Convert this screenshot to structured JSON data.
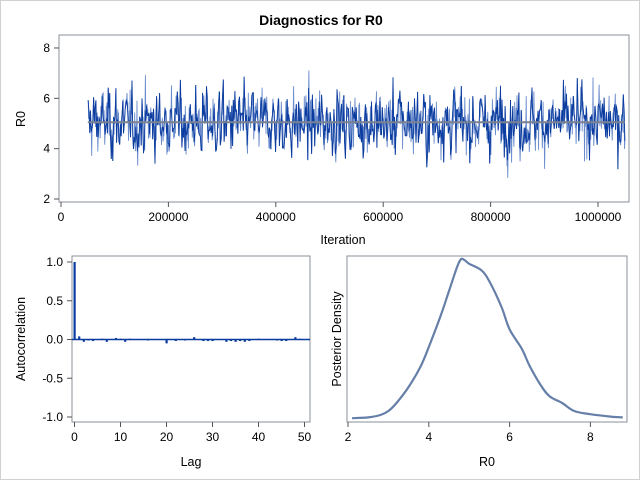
{
  "title": "Diagnostics for R0",
  "colors": {
    "trace": "#0a3b9f",
    "trace_light": "#6a8ccc",
    "mean_line": "#7a8190",
    "acf": "#0a3b9f",
    "density": "#667fa8",
    "frame": "#8a9098"
  },
  "chart_data": [
    {
      "type": "line",
      "panel": "trace",
      "xlabel": "Iteration",
      "ylabel": "R0",
      "xlim": [
        0,
        1050000
      ],
      "ylim": [
        2,
        8.4
      ],
      "xticks": [
        "0",
        "200000",
        "400000",
        "600000",
        "800000",
        "1000000"
      ],
      "yticks": [
        "2",
        "4",
        "6",
        "8"
      ],
      "iteration_range": [
        50000,
        1050000
      ],
      "mean": 5.05,
      "observed_min": 2.6,
      "observed_max": 8.3,
      "grid": false
    },
    {
      "type": "bar",
      "panel": "autocorrelation",
      "xlabel": "Lag",
      "ylabel": "Autocorrelation",
      "xlim": [
        0,
        51
      ],
      "ylim": [
        -1.05,
        1.05
      ],
      "xticks": [
        "0",
        "10",
        "20",
        "30",
        "40",
        "50"
      ],
      "yticks": [
        "1.0",
        "0.5",
        "0.0",
        "-0.5",
        "-1.0"
      ],
      "lags": [
        0,
        1,
        2,
        3,
        4,
        5,
        6,
        7,
        8,
        9,
        10,
        11,
        12,
        13,
        14,
        15,
        16,
        17,
        18,
        19,
        20,
        21,
        22,
        23,
        24,
        25,
        26,
        27,
        28,
        29,
        30,
        31,
        32,
        33,
        34,
        35,
        36,
        37,
        38,
        39,
        40,
        41,
        42,
        43,
        44,
        45,
        46,
        47,
        48,
        49,
        50
      ],
      "values": [
        1.0,
        0.04,
        -0.03,
        -0.01,
        -0.02,
        0.0,
        0.01,
        -0.03,
        0.0,
        0.02,
        0.01,
        -0.03,
        0.01,
        0.0,
        0.0,
        0.0,
        -0.01,
        0.0,
        0.0,
        0.0,
        -0.05,
        0.0,
        -0.02,
        0.0,
        -0.01,
        0.0,
        0.03,
        0.0,
        -0.02,
        -0.02,
        -0.02,
        0.0,
        0.0,
        -0.03,
        -0.02,
        -0.03,
        -0.02,
        -0.03,
        -0.02,
        0.0,
        0.01,
        0.0,
        0.0,
        0.0,
        -0.01,
        -0.02,
        -0.02,
        0.0,
        0.03,
        0.01,
        0.0
      ],
      "grid": false
    },
    {
      "type": "line",
      "panel": "density",
      "xlabel": "R0",
      "ylabel": "Posterior Density",
      "xlim": [
        2,
        8.8
      ],
      "xticks": [
        "2",
        "4",
        "6",
        "8"
      ],
      "x": [
        2.1,
        2.5,
        2.8,
        3.0,
        3.2,
        3.5,
        3.8,
        4.0,
        4.3,
        4.5,
        4.7,
        4.8,
        4.9,
        5.0,
        5.3,
        5.5,
        5.8,
        6.0,
        6.3,
        6.5,
        6.8,
        7.0,
        7.3,
        7.6,
        8.0,
        8.5,
        8.8
      ],
      "y_relative": [
        0.005,
        0.01,
        0.025,
        0.05,
        0.1,
        0.2,
        0.33,
        0.45,
        0.65,
        0.8,
        0.95,
        1.0,
        0.99,
        0.97,
        0.93,
        0.86,
        0.7,
        0.56,
        0.44,
        0.33,
        0.2,
        0.14,
        0.1,
        0.05,
        0.03,
        0.015,
        0.01
      ],
      "grid": false
    }
  ]
}
